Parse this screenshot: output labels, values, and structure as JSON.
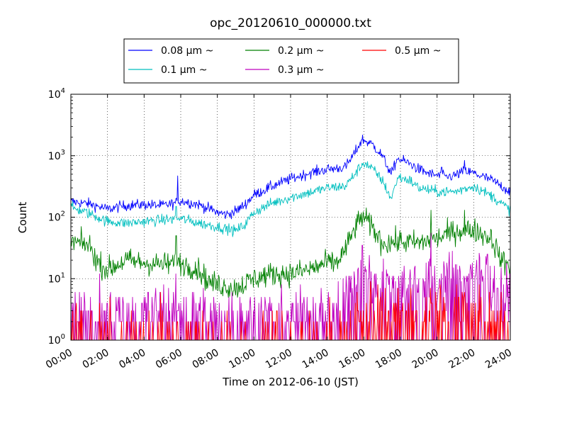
{
  "chart_data": {
    "type": "line",
    "title": "opc_20120610_000000.txt",
    "xlabel": "Time on 2012-06-10 (JST)",
    "ylabel": "Count",
    "yscale": "log",
    "ylim": [
      1,
      10000
    ],
    "xlim": [
      "00:00",
      "24:00"
    ],
    "x_ticks": [
      "00:00",
      "02:00",
      "04:00",
      "06:00",
      "08:00",
      "10:00",
      "12:00",
      "14:00",
      "16:00",
      "18:00",
      "20:00",
      "22:00",
      "24:00"
    ],
    "y_ticks": [
      {
        "value": 1,
        "base": "10",
        "exp": "0"
      },
      {
        "value": 10,
        "base": "10",
        "exp": "1"
      },
      {
        "value": 100,
        "base": "10",
        "exp": "2"
      },
      {
        "value": 1000,
        "base": "10",
        "exp": "3"
      },
      {
        "value": 10000,
        "base": "10",
        "exp": "4"
      }
    ],
    "grid": true,
    "legend_position": "top-center",
    "legend_columns": 3,
    "series_units": "Time (JST) vs Count",
    "series": [
      {
        "name": "0.08 μm ~",
        "color": "#0000ff",
        "noise": 0.09,
        "points": [
          [
            "00:00",
            180
          ],
          [
            "01:00",
            165
          ],
          [
            "02:00",
            135
          ],
          [
            "03:00",
            155
          ],
          [
            "04:00",
            160
          ],
          [
            "05:00",
            155
          ],
          [
            "05:45",
            170
          ],
          [
            "06:00",
            185
          ],
          [
            "07:00",
            160
          ],
          [
            "08:00",
            120
          ],
          [
            "08:30",
            110
          ],
          [
            "09:00",
            125
          ],
          [
            "09:30",
            160
          ],
          [
            "10:00",
            230
          ],
          [
            "11:00",
            320
          ],
          [
            "12:00",
            420
          ],
          [
            "13:00",
            520
          ],
          [
            "14:00",
            600
          ],
          [
            "15:00",
            650
          ],
          [
            "15:30",
            1100
          ],
          [
            "15:55",
            1850
          ],
          [
            "16:30",
            1500
          ],
          [
            "17:00",
            1000
          ],
          [
            "17:30",
            500
          ],
          [
            "17:50",
            900
          ],
          [
            "18:30",
            750
          ],
          [
            "19:00",
            600
          ],
          [
            "19:40",
            500
          ],
          [
            "20:00",
            480
          ],
          [
            "20:30",
            450
          ],
          [
            "21:00",
            480
          ],
          [
            "21:30",
            560
          ],
          [
            "22:00",
            520
          ],
          [
            "23:00",
            400
          ],
          [
            "24:00",
            260
          ]
        ],
        "spikes": [
          [
            "05:50",
            470
          ],
          [
            "14:50",
            600
          ],
          [
            "17:45",
            760
          ],
          [
            "20:15",
            650
          ],
          [
            "21:30",
            840
          ]
        ]
      },
      {
        "name": "0.1 μm ~",
        "color": "#00bfbf",
        "noise": 0.09,
        "points": [
          [
            "00:00",
            145
          ],
          [
            "01:00",
            115
          ],
          [
            "02:00",
            85
          ],
          [
            "03:00",
            80
          ],
          [
            "04:00",
            85
          ],
          [
            "05:00",
            90
          ],
          [
            "06:00",
            95
          ],
          [
            "07:00",
            80
          ],
          [
            "08:00",
            70
          ],
          [
            "09:00",
            60
          ],
          [
            "09:30",
            75
          ],
          [
            "10:00",
            120
          ],
          [
            "11:00",
            170
          ],
          [
            "12:00",
            210
          ],
          [
            "13:00",
            250
          ],
          [
            "14:00",
            300
          ],
          [
            "15:00",
            320
          ],
          [
            "15:30",
            500
          ],
          [
            "16:00",
            780
          ],
          [
            "16:30",
            600
          ],
          [
            "17:00",
            400
          ],
          [
            "17:30",
            200
          ],
          [
            "17:50",
            450
          ],
          [
            "18:30",
            400
          ],
          [
            "19:00",
            300
          ],
          [
            "20:00",
            260
          ],
          [
            "21:00",
            260
          ],
          [
            "22:00",
            320
          ],
          [
            "23:00",
            220
          ],
          [
            "24:00",
            130
          ]
        ],
        "spikes": [
          [
            "05:45",
            150
          ],
          [
            "17:45",
            330
          ],
          [
            "21:30",
            310
          ]
        ]
      },
      {
        "name": "0.2 μm ~",
        "color": "#008000",
        "noise": 0.2,
        "points": [
          [
            "00:00",
            40
          ],
          [
            "01:00",
            35
          ],
          [
            "01:30",
            18
          ],
          [
            "02:00",
            14
          ],
          [
            "03:00",
            20
          ],
          [
            "04:00",
            18
          ],
          [
            "05:00",
            17
          ],
          [
            "06:00",
            18
          ],
          [
            "07:00",
            14
          ],
          [
            "07:30",
            9
          ],
          [
            "08:00",
            8
          ],
          [
            "09:00",
            7
          ],
          [
            "10:00",
            10
          ],
          [
            "11:00",
            12
          ],
          [
            "12:00",
            12
          ],
          [
            "13:00",
            14
          ],
          [
            "14:00",
            18
          ],
          [
            "14:30",
            18
          ],
          [
            "15:00",
            30
          ],
          [
            "15:30",
            65
          ],
          [
            "15:55",
            105
          ],
          [
            "16:30",
            65
          ],
          [
            "17:00",
            38
          ],
          [
            "18:00",
            40
          ],
          [
            "19:00",
            38
          ],
          [
            "20:00",
            45
          ],
          [
            "21:00",
            60
          ],
          [
            "22:00",
            62
          ],
          [
            "23:00",
            45
          ],
          [
            "23:30",
            20
          ],
          [
            "24:00",
            16
          ]
        ],
        "spikes": [
          [
            "05:45",
            50
          ],
          [
            "19:40",
            130
          ],
          [
            "21:30",
            130
          ]
        ]
      },
      {
        "name": "0.3 μm ~",
        "color": "#bf00bf",
        "noise": 0.45,
        "points": [
          [
            "00:00",
            3
          ],
          [
            "02:00",
            3
          ],
          [
            "04:00",
            3
          ],
          [
            "06:00",
            3
          ],
          [
            "08:00",
            2.5
          ],
          [
            "10:00",
            2.5
          ],
          [
            "12:00",
            2.5
          ],
          [
            "14:00",
            3
          ],
          [
            "15:00",
            6
          ],
          [
            "15:55",
            18
          ],
          [
            "16:30",
            10
          ],
          [
            "17:00",
            8
          ],
          [
            "18:00",
            8
          ],
          [
            "19:00",
            9
          ],
          [
            "20:00",
            9
          ],
          [
            "21:00",
            11
          ],
          [
            "22:00",
            13
          ],
          [
            "22:45",
            12
          ],
          [
            "23:20",
            7
          ],
          [
            "24:00",
            5
          ]
        ],
        "spikes": [
          [
            "15:55",
            35
          ],
          [
            "19:40",
            55
          ],
          [
            "22:45",
            25
          ]
        ]
      },
      {
        "name": "0.5 μm ~",
        "color": "#ff0000",
        "noise": 0.55,
        "points": [
          [
            "00:00",
            1
          ],
          [
            "14:30",
            1
          ],
          [
            "15:00",
            1
          ],
          [
            "15:30",
            2
          ],
          [
            "16:00",
            3
          ],
          [
            "17:00",
            2.5
          ],
          [
            "18:00",
            2.5
          ],
          [
            "20:00",
            2.5
          ],
          [
            "22:00",
            2.5
          ],
          [
            "24:00",
            2
          ]
        ],
        "spikes": [
          [
            "02:00",
            2
          ],
          [
            "17:00",
            6
          ],
          [
            "21:30",
            6
          ],
          [
            "23:30",
            6
          ]
        ]
      }
    ]
  }
}
